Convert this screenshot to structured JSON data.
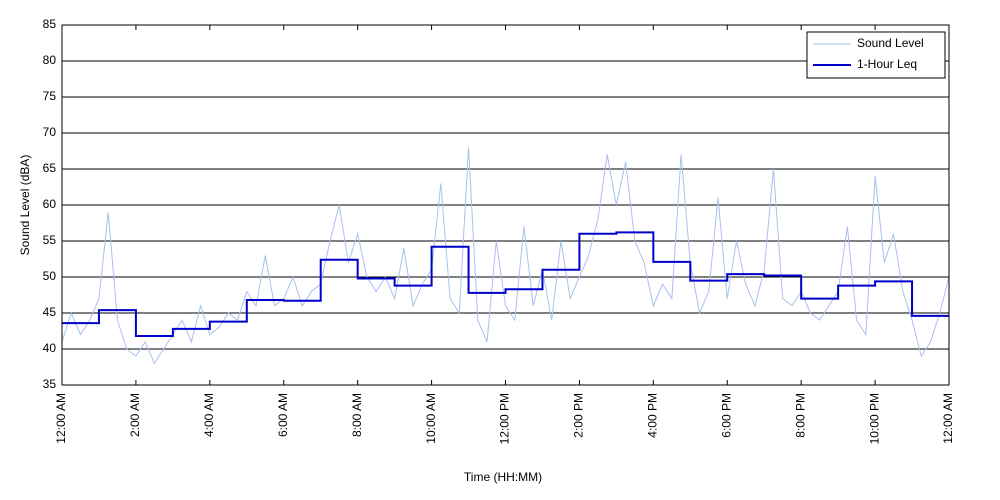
{
  "chart_data": {
    "type": "line",
    "xlabel": "Time (HH:MM)",
    "ylabel": "Sound Level (dBA)",
    "xlim": [
      0,
      24
    ],
    "xticks": [
      {
        "value": 0,
        "label": "12:00 AM"
      },
      {
        "value": 2,
        "label": "2:00 AM"
      },
      {
        "value": 4,
        "label": "4:00 AM"
      },
      {
        "value": 6,
        "label": "6:00 AM"
      },
      {
        "value": 8,
        "label": "8:00 AM"
      },
      {
        "value": 10,
        "label": "10:00 AM"
      },
      {
        "value": 12,
        "label": "12:00 PM"
      },
      {
        "value": 14,
        "label": "2:00 PM"
      },
      {
        "value": 16,
        "label": "4:00 PM"
      },
      {
        "value": 18,
        "label": "6:00 PM"
      },
      {
        "value": 20,
        "label": "8:00 PM"
      },
      {
        "value": 22,
        "label": "10:00 PM"
      },
      {
        "value": 24,
        "label": "12:00 AM"
      }
    ],
    "ylim": [
      35,
      85
    ],
    "yticks": [
      35,
      40,
      45,
      50,
      55,
      60,
      65,
      70,
      75,
      80,
      85
    ],
    "grid": true,
    "legend": "upper right",
    "series": [
      {
        "name": "Sound Level",
        "color": "#a8c0f0",
        "width": 1,
        "x": [
          0,
          0.25,
          0.5,
          0.75,
          1,
          1.25,
          1.5,
          1.75,
          2,
          2.25,
          2.5,
          2.75,
          3,
          3.25,
          3.5,
          3.75,
          4,
          4.25,
          4.5,
          4.75,
          5,
          5.25,
          5.5,
          5.75,
          6,
          6.25,
          6.5,
          6.75,
          7,
          7.25,
          7.5,
          7.75,
          8,
          8.25,
          8.5,
          8.75,
          9,
          9.25,
          9.5,
          9.75,
          10,
          10.25,
          10.5,
          10.75,
          11,
          11.25,
          11.5,
          11.75,
          12,
          12.25,
          12.5,
          12.75,
          13,
          13.25,
          13.5,
          13.75,
          14,
          14.25,
          14.5,
          14.75,
          15,
          15.25,
          15.5,
          15.75,
          16,
          16.25,
          16.5,
          16.75,
          17,
          17.25,
          17.5,
          17.75,
          18,
          18.25,
          18.5,
          18.75,
          19,
          19.25,
          19.5,
          19.75,
          20,
          20.25,
          20.5,
          20.75,
          21,
          21.25,
          21.5,
          21.75,
          22,
          22.25,
          22.5,
          22.75,
          23,
          23.25,
          23.5,
          23.75,
          24
        ],
        "values": [
          41,
          45,
          42,
          44,
          47,
          59,
          44,
          40,
          39,
          41,
          38,
          40,
          42,
          44,
          41,
          46,
          42,
          43,
          45,
          44,
          48,
          46,
          53,
          46,
          47,
          50,
          46,
          48,
          49,
          55,
          60,
          52,
          56,
          50,
          48,
          50,
          47,
          54,
          46,
          49,
          51,
          63,
          47,
          45,
          68,
          44,
          41,
          55,
          46,
          44,
          57,
          46,
          51,
          44,
          55,
          47,
          50,
          53,
          58,
          67,
          60,
          66,
          55,
          52,
          46,
          49,
          47,
          67,
          52,
          45,
          48,
          61,
          47,
          55,
          49,
          46,
          51,
          65,
          47,
          46,
          48,
          45,
          44,
          46,
          48,
          57,
          44,
          42,
          64,
          52,
          56,
          48,
          44,
          39,
          41,
          45,
          50
        ]
      },
      {
        "name": "1-Hour Leq",
        "color": "#0000cc",
        "width": 2,
        "step": "post",
        "x": [
          0,
          1,
          2,
          3,
          4,
          5,
          6,
          7,
          8,
          9,
          10,
          11,
          12,
          13,
          14,
          15,
          16,
          17,
          18,
          19,
          20,
          21,
          22,
          23
        ],
        "values": [
          43.6,
          45.4,
          41.8,
          42.8,
          43.8,
          46.8,
          46.7,
          52.4,
          49.8,
          48.8,
          54.2,
          47.8,
          48.3,
          51.0,
          56.0,
          56.2,
          52.1,
          49.5,
          50.4,
          50.2,
          47.0,
          48.8,
          49.4,
          44.6
        ]
      }
    ]
  }
}
